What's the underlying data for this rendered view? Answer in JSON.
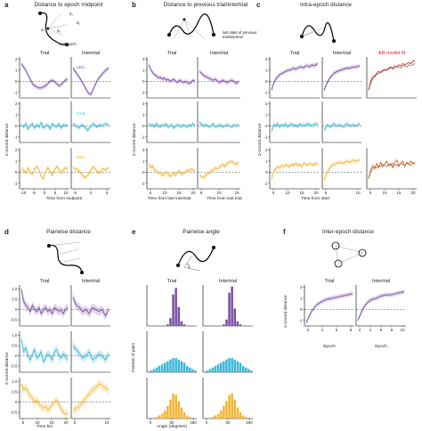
{
  "colors": {
    "violet": "#7a4fa3",
    "cyan": "#3ab7d8",
    "gold": "#f2b533",
    "red": "#d7261e",
    "orange": "#e85b12"
  },
  "panels": {
    "a": {
      "letter": "a",
      "title": "Distance to epoch midpoint",
      "col1": "Trial",
      "col2": "Intertrial",
      "xlabel": "Time from midpoint",
      "ylabel": "Z-scored distance",
      "labels": [
        "LEC",
        "CA3",
        "MEC"
      ],
      "schematic": [
        "d₁",
        "d₂",
        "d₃",
        "d₄",
        "mid-epoch"
      ],
      "x_ticks_trial": [
        "-10",
        "-5",
        "0",
        "5",
        "10"
      ],
      "x_ticks_inter": [
        "-5",
        "0",
        "5"
      ],
      "y_ticks": [
        "2",
        "1",
        "0",
        "-1"
      ]
    },
    "b": {
      "letter": "b",
      "title": "Distance to previous trial/intertrial",
      "col1": "Trial",
      "col2": "Intertrial",
      "xlabel1": "Time from last intertrial",
      "xlabel2": "Time from last trial",
      "ylabel": "Z-scored distance",
      "annotation": "last state of previous\ntrial/intertrial",
      "x_ticks_trial": [
        "5",
        "10",
        "15",
        "20"
      ],
      "x_ticks_inter": [
        "5",
        "10",
        "15"
      ],
      "y_ticks": [
        "2",
        "1",
        "0",
        "-1"
      ]
    },
    "c": {
      "letter": "c",
      "title": "Intra-epoch distance",
      "col1": "Trial",
      "col2": "Intertrial",
      "col3": "AR model fit",
      "xlabel": "Time from start",
      "ylabel": "Z-scored distance",
      "x_ticks_trial": [
        "5",
        "10",
        "15",
        "20"
      ],
      "x_ticks_inter": [
        "5",
        "10"
      ],
      "x_ticks_ar": [
        "5",
        "10",
        "15",
        "20"
      ],
      "y_ticks": [
        "2",
        "1",
        "0",
        "-1"
      ]
    },
    "d": {
      "letter": "d",
      "title": "Pairwise distance",
      "col1": "Trial",
      "col2": "Intertrial",
      "xlabel": "Time bin",
      "ylabel": "Z-scored distance",
      "x_ticks_trial": [
        "5",
        "10",
        "15",
        "20"
      ],
      "x_ticks_inter": [
        "5",
        "10"
      ],
      "y_ticks": [
        "1.0",
        "0.5",
        "0",
        "-0.5"
      ]
    },
    "e": {
      "letter": "e",
      "title": "Pairwise angle",
      "col1": "Trial",
      "col2": "Intertrial",
      "xlabel": "Angle (degrees)",
      "ylabel": "Fraction of pairs",
      "x_ticks": [
        "0",
        "90",
        "180"
      ]
    },
    "f": {
      "letter": "f",
      "title": "Inter-epoch distance",
      "col1": "Trial",
      "col2": "Intertrial",
      "xlabel": "Epoch",
      "ylabel": "Z-scored distance",
      "x_ticks_trial": [
        "2",
        "4",
        "6",
        "8"
      ],
      "x_ticks_inter": [
        "2",
        "4",
        "6",
        "8",
        "10"
      ],
      "y_ticks": [
        "2",
        "1",
        "0",
        "-1"
      ]
    }
  },
  "chart_data": [
    {
      "panel": "a",
      "type": "line",
      "xlabel": "Time from midpoint",
      "ylabel": "Z-scored distance",
      "series": [
        {
          "name": "LEC",
          "trial": [
            1.6,
            1.3,
            1.0,
            0.6,
            0.2,
            -0.2,
            -0.4,
            -0.5,
            -0.6,
            -0.6,
            -0.5,
            -0.4,
            -0.2,
            0.0,
            0.1,
            0.0,
            -0.2,
            -0.4,
            -0.3,
            -0.1,
            0.1,
            0.2
          ],
          "intertrial": [
            1.2,
            0.8,
            0.4,
            0.0,
            -0.5,
            -1.0,
            -1.2,
            -0.6,
            0.0,
            0.4,
            0.7,
            1.0,
            1.2
          ]
        },
        {
          "name": "CA3",
          "trial": [
            0.1,
            -0.1,
            0.2,
            -0.3,
            0.0,
            0.2,
            -0.2,
            0.1,
            -0.1,
            0.3,
            -0.2,
            0.0,
            0.1,
            -0.3,
            0.2,
            0.0,
            -0.1,
            0.2,
            -0.2,
            0.1,
            0.0,
            0.1
          ],
          "intertrial": [
            0.2,
            0.0,
            -0.2,
            0.1,
            -0.1,
            -0.4,
            0.0,
            0.2,
            -0.1,
            0.1,
            0.0,
            0.2,
            0.1
          ]
        },
        {
          "name": "MEC",
          "trial": [
            0.3,
            0.2,
            -0.1,
            0.4,
            0.0,
            -0.2,
            0.3,
            0.5,
            0.2,
            -0.4,
            -0.6,
            0.1,
            0.4,
            0.1,
            -0.3,
            0.2,
            0.5,
            0.3,
            -0.1,
            0.2,
            0.4,
            0.3
          ],
          "intertrial": [
            0.4,
            0.3,
            0.1,
            -0.2,
            -0.5,
            -0.3,
            0.2,
            0.5,
            0.1,
            -0.1,
            0.3,
            0.2,
            0.4
          ]
        }
      ]
    },
    {
      "panel": "b",
      "type": "line",
      "ylabel": "Z-scored distance",
      "series": [
        {
          "name": "LEC",
          "trial": [
            1.5,
            1.1,
            0.8,
            0.6,
            0.5,
            0.3,
            0.4,
            0.2,
            0.3,
            0.1,
            0.2,
            0.0,
            0.1,
            0.2,
            0.0,
            -0.1,
            0.1,
            0.0,
            -0.1,
            0.0,
            -0.1,
            -0.2,
            -0.1,
            0.1,
            0.0
          ],
          "intertrial": [
            0.9,
            0.7,
            0.5,
            0.4,
            0.3,
            0.2,
            0.1,
            0.2,
            0.0,
            -0.1,
            0.1,
            0.0,
            -0.1,
            0.0,
            0.1,
            0.0,
            -0.2,
            0.0
          ]
        },
        {
          "name": "CA3",
          "trial": [
            0.2,
            0.0,
            0.1,
            -0.1,
            0.2,
            0.0,
            -0.1,
            0.1,
            0.0,
            0.2,
            -0.1,
            0.0,
            0.1,
            -0.2,
            0.0,
            0.1,
            0.0,
            -0.1,
            0.1,
            0.0,
            -0.1,
            0.1,
            0.0,
            0.2,
            0.0
          ],
          "intertrial": [
            0.3,
            0.1,
            0.0,
            0.1,
            -0.1,
            0.0,
            0.2,
            -0.1,
            0.0,
            0.1,
            -0.1,
            0.0,
            0.1,
            0.0,
            -0.1,
            0.1,
            0.0,
            0.1
          ]
        },
        {
          "name": "MEC",
          "trial": [
            0.8,
            0.4,
            0.6,
            0.2,
            0.1,
            -0.1,
            0.0,
            -0.3,
            -0.2,
            0.0,
            -0.1,
            -0.4,
            -0.2,
            -0.1,
            -0.3,
            0.0,
            0.1,
            -0.2,
            -0.1,
            0.0,
            0.2,
            0.1,
            0.3,
            0.2,
            0.1
          ],
          "intertrial": [
            -0.3,
            -0.4,
            -0.5,
            -0.2,
            -0.1,
            0.1,
            0.2,
            0.4,
            0.3,
            0.5,
            0.7,
            0.5,
            0.8,
            0.9,
            1.0,
            0.8,
            0.7,
            0.9
          ]
        }
      ]
    },
    {
      "panel": "c",
      "type": "line",
      "ylabel": "Z-scored distance",
      "series": [
        {
          "name": "LEC",
          "trial": [
            -0.8,
            -0.2,
            0.2,
            0.4,
            0.6,
            0.7,
            0.8,
            0.9,
            1.0,
            1.0,
            1.1,
            1.2,
            1.1,
            1.2,
            1.3,
            1.3,
            1.2,
            1.4,
            1.4,
            1.3,
            1.5,
            1.4,
            1.5,
            1.6
          ],
          "intertrial": [
            -0.8,
            -0.1,
            0.4,
            0.7,
            0.9,
            1.0,
            1.1,
            1.2,
            1.2,
            1.3,
            1.3,
            1.4
          ],
          "ar_fit": [
            -0.8,
            0.0,
            0.4,
            0.5,
            0.7,
            0.9,
            0.8,
            1.0,
            1.1,
            1.0,
            1.2,
            1.3,
            1.2,
            1.4,
            1.3,
            1.5,
            1.4,
            1.6,
            1.5,
            1.6,
            1.7,
            1.6,
            1.8,
            1.9
          ]
        },
        {
          "name": "CA3",
          "trial": [
            -0.5,
            0.1,
            0.0,
            0.2,
            -0.1,
            0.1,
            0.0,
            0.2,
            -0.1,
            0.1,
            0.2,
            0.0,
            0.1,
            -0.1,
            0.2,
            0.0,
            0.1,
            0.0,
            0.2,
            0.1,
            0.0,
            0.1,
            0.2,
            0.1
          ],
          "intertrial": [
            -0.4,
            0.1,
            -0.1,
            0.2,
            0.0,
            0.1,
            -0.1,
            0.2,
            0.0,
            0.1,
            0.0,
            0.2
          ]
        },
        {
          "name": "MEC",
          "trial": [
            -0.6,
            0.0,
            0.3,
            0.5,
            0.4,
            0.6,
            0.5,
            0.7,
            0.6,
            0.5,
            0.7,
            0.6,
            0.8,
            0.6,
            0.7,
            0.5,
            0.8,
            0.7,
            0.6,
            0.8,
            0.7,
            0.6,
            0.8,
            0.7
          ],
          "intertrial": [
            -0.7,
            0.0,
            0.5,
            0.7,
            0.8,
            0.9,
            0.8,
            1.0,
            0.9,
            1.1,
            1.0,
            1.1
          ],
          "ar_fit": [
            -0.6,
            0.2,
            0.6,
            0.3,
            0.8,
            0.4,
            0.9,
            0.5,
            0.7,
            1.0,
            0.6,
            0.8,
            0.4,
            0.9,
            1.1,
            0.6,
            0.8,
            1.0,
            0.5,
            0.9,
            0.7,
            1.0,
            0.8,
            0.9
          ]
        }
      ]
    },
    {
      "panel": "d",
      "type": "line",
      "ylabel": "Z-scored distance",
      "series": [
        {
          "name": "LEC",
          "trial": [
            1.0,
            0.4,
            0.2,
            0.1,
            -0.1,
            0.2,
            0.0,
            -0.1,
            0.1,
            -0.2,
            0.0,
            0.1,
            -0.1,
            0.0,
            -0.2,
            0.1,
            0.0,
            -0.1,
            0.0,
            -0.2,
            0.0,
            0.1
          ],
          "intertrial": [
            0.6,
            0.2,
            0.1,
            -0.1,
            0.0,
            -0.2,
            0.1,
            0.0,
            -0.1,
            0.0,
            -0.3,
            0.0
          ]
        },
        {
          "name": "CA3",
          "trial": [
            0.8,
            0.2,
            0.4,
            0.0,
            -0.2,
            0.1,
            0.3,
            -0.1,
            0.0,
            0.2,
            -0.3,
            -0.1,
            0.1,
            0.0,
            -0.2,
            0.2,
            0.3,
            0.0,
            -0.1,
            0.1,
            0.0,
            -0.2
          ],
          "intertrial": [
            0.5,
            0.3,
            0.1,
            -0.1,
            0.0,
            0.2,
            -0.2,
            -0.1,
            0.1,
            0.0,
            -0.2,
            0.1
          ]
        },
        {
          "name": "MEC",
          "trial": [
            0.9,
            0.6,
            0.7,
            0.5,
            0.3,
            0.2,
            0.0,
            0.1,
            -0.1,
            -0.2,
            -0.3,
            -0.2,
            -0.4,
            -0.3,
            -0.1,
            0.0,
            0.1,
            -0.1,
            -0.3,
            -0.5,
            -0.6,
            -0.5
          ],
          "intertrial": [
            -0.4,
            -0.3,
            -0.2,
            0.0,
            0.2,
            0.4,
            0.6,
            0.7,
            0.9,
            0.8,
            0.7,
            0.6
          ]
        }
      ]
    },
    {
      "panel": "e",
      "type": "bar",
      "xlabel": "Angle (degrees)",
      "ylabel": "Fraction of pairs",
      "bins": [
        0,
        10,
        20,
        30,
        40,
        50,
        60,
        70,
        80,
        90,
        100,
        110,
        120,
        130,
        140,
        150,
        160,
        170
      ],
      "series": [
        {
          "name": "LEC",
          "trial": [
            0,
            0,
            0,
            0,
            0,
            0,
            0,
            0.01,
            0.05,
            0.2,
            0.24,
            0.12,
            0.03,
            0.01,
            0,
            0,
            0,
            0
          ],
          "intertrial": [
            0,
            0,
            0,
            0,
            0,
            0,
            0,
            0.01,
            0.04,
            0.21,
            0.25,
            0.11,
            0.03,
            0.01,
            0,
            0,
            0,
            0
          ]
        },
        {
          "name": "CA3",
          "trial": [
            0,
            0.01,
            0.02,
            0.03,
            0.04,
            0.05,
            0.06,
            0.07,
            0.08,
            0.09,
            0.09,
            0.08,
            0.07,
            0.06,
            0.04,
            0.03,
            0.02,
            0.01
          ],
          "intertrial": [
            0,
            0.01,
            0.02,
            0.03,
            0.04,
            0.05,
            0.06,
            0.07,
            0.08,
            0.09,
            0.09,
            0.08,
            0.07,
            0.06,
            0.04,
            0.03,
            0.02,
            0.01
          ]
        },
        {
          "name": "MEC",
          "trial": [
            0,
            0,
            0,
            0.01,
            0.02,
            0.03,
            0.05,
            0.08,
            0.12,
            0.16,
            0.15,
            0.11,
            0.07,
            0.04,
            0.02,
            0.01,
            0,
            0
          ],
          "intertrial": [
            0,
            0,
            0,
            0.01,
            0.02,
            0.03,
            0.05,
            0.08,
            0.11,
            0.15,
            0.16,
            0.12,
            0.07,
            0.04,
            0.02,
            0.01,
            0,
            0
          ]
        }
      ]
    },
    {
      "panel": "f",
      "type": "line",
      "xlabel": "Epoch",
      "ylabel": "Z-scored distance",
      "series": [
        {
          "name": "LEC",
          "trial": [
            -1.2,
            -0.2,
            0.4,
            0.7,
            0.9,
            1.0,
            1.1,
            1.2,
            1.3,
            1.4
          ],
          "intertrial": [
            -1.0,
            0.0,
            0.6,
            0.9,
            1.0,
            1.2,
            1.3,
            1.3,
            1.4,
            1.5,
            1.6
          ]
        }
      ]
    }
  ]
}
